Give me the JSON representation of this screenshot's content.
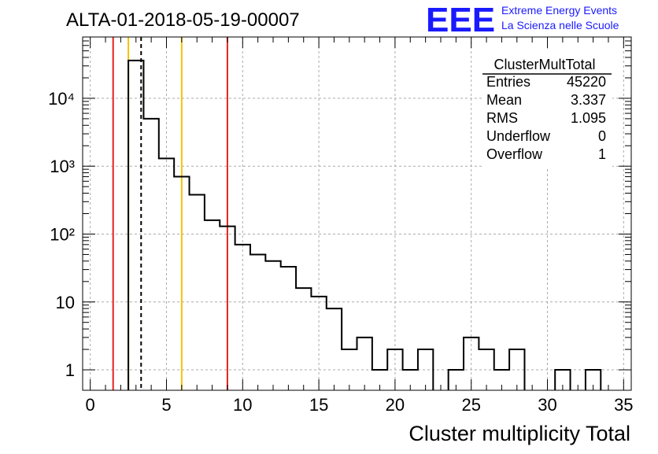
{
  "header": {
    "title": "ALTA-01-2018-05-19-00007",
    "logo_text": "EEE",
    "logo_line1": "Extreme Energy Events",
    "logo_line2": "La Scienza nelle Scuole"
  },
  "stats_box": {
    "title": "ClusterMultTotal",
    "rows": [
      {
        "label": "Entries",
        "value": "45220"
      },
      {
        "label": "Mean",
        "value": "3.337"
      },
      {
        "label": "RMS",
        "value": "1.095"
      },
      {
        "label": "Underflow",
        "value": "0"
      },
      {
        "label": "Overflow",
        "value": "1"
      }
    ]
  },
  "colors": {
    "red": "#e8221c",
    "yellow": "#f2c20a",
    "logo_blue": "#1a1aff",
    "grid": "#aaaaaa"
  },
  "chart_data": {
    "type": "bar",
    "title": "ALTA-01-2018-05-19-00007",
    "xlabel": "Cluster multiplicity Total",
    "ylabel": "",
    "xlim": [
      -0.5,
      35.5
    ],
    "ylim": [
      0.5,
      80000
    ],
    "yscale": "log",
    "grid": true,
    "x_ticks": [
      0,
      5,
      10,
      15,
      20,
      25,
      30,
      35
    ],
    "y_ticks": [
      1,
      10,
      100,
      1000,
      10000
    ],
    "y_tick_labels": [
      "1",
      "10",
      "10²",
      "10³",
      "10⁴"
    ],
    "bin_edges_start": 2.5,
    "bin_width": 1,
    "bin_values": [
      36000,
      5000,
      1300,
      700,
      380,
      160,
      130,
      70,
      50,
      40,
      33,
      16,
      12,
      8,
      2,
      3,
      1,
      2,
      1,
      2,
      0,
      1,
      3,
      2,
      1,
      2,
      0,
      0,
      1,
      0,
      1,
      0,
      0
    ],
    "vertical_lines": [
      {
        "x": 1.5,
        "color": "red",
        "style": "solid"
      },
      {
        "x": 2.5,
        "color": "yellow",
        "style": "solid"
      },
      {
        "x": 3.337,
        "color": "black",
        "style": "dashed"
      },
      {
        "x": 6.0,
        "color": "yellow",
        "style": "solid"
      },
      {
        "x": 9.0,
        "color": "red",
        "style": "solid"
      }
    ]
  }
}
